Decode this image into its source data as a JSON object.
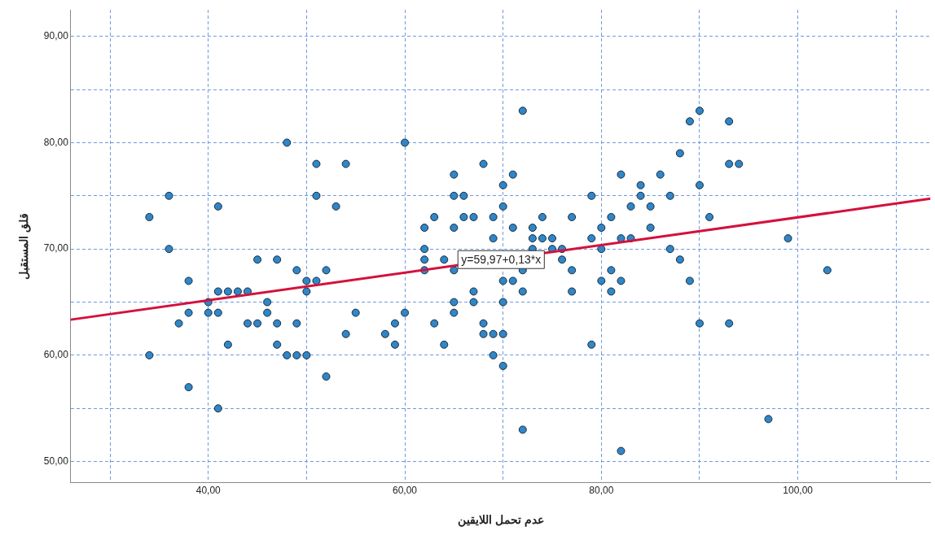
{
  "chart_data": {
    "type": "scatter",
    "xlabel": "عدم تحمل اللايقين",
    "ylabel": "قلق المستقبل",
    "xlim": [
      26,
      113.5
    ],
    "ylim": [
      48,
      92.5
    ],
    "xticks": [
      {
        "value": 30,
        "label": null
      },
      {
        "value": 40,
        "label": "40,00"
      },
      {
        "value": 50,
        "label": null
      },
      {
        "value": 60,
        "label": "60,00"
      },
      {
        "value": 70,
        "label": null
      },
      {
        "value": 80,
        "label": "80,00"
      },
      {
        "value": 90,
        "label": null
      },
      {
        "value": 100,
        "label": "100,00"
      },
      {
        "value": 110,
        "label": null
      }
    ],
    "yticks": [
      {
        "value": 50,
        "label": "50,00"
      },
      {
        "value": 55,
        "label": null
      },
      {
        "value": 60,
        "label": "60,00"
      },
      {
        "value": 65,
        "label": null
      },
      {
        "value": 70,
        "label": "70,00"
      },
      {
        "value": 75,
        "label": null
      },
      {
        "value": 80,
        "label": "80,00"
      },
      {
        "value": 85,
        "label": null
      },
      {
        "value": 90,
        "label": "90,00"
      }
    ],
    "grid": true,
    "legend": false,
    "annotations": [
      {
        "text": "y=59,97+0,13*x",
        "x": 69.8,
        "y": 69
      }
    ],
    "series": [
      {
        "marker": "circle",
        "color": "#2f86c8",
        "x": [
          48,
          51,
          54,
          36,
          41,
          34,
          51,
          53,
          36,
          45,
          47,
          49,
          52,
          38,
          50,
          51,
          50,
          41,
          42,
          43,
          44,
          40,
          46,
          38,
          40,
          41,
          46,
          55,
          37,
          44,
          45,
          47,
          49,
          54,
          42,
          47,
          34,
          48,
          49,
          50,
          52,
          38,
          41,
          60,
          72,
          68,
          65,
          71,
          70,
          65,
          66,
          79,
          70,
          63,
          66,
          67,
          69,
          74,
          77,
          62,
          65,
          71,
          73,
          80,
          69,
          73,
          74,
          75,
          79,
          62,
          73,
          75,
          76,
          80,
          81,
          82,
          84,
          84,
          83,
          85,
          85,
          82,
          83,
          90,
          89,
          93,
          88,
          93,
          94,
          86,
          90,
          87,
          91,
          99,
          87,
          62,
          62,
          64,
          65,
          76,
          72,
          77,
          70,
          71,
          72,
          77,
          81,
          80,
          82,
          81,
          67,
          67,
          65,
          70,
          65,
          60,
          59,
          58,
          59,
          63,
          64,
          68,
          68,
          69,
          70,
          69,
          70,
          79,
          72,
          82,
          88,
          89,
          90,
          93,
          103,
          97
        ],
        "values": [
          80,
          78,
          78,
          75,
          74,
          73,
          75,
          74,
          70,
          69,
          69,
          68,
          68,
          67,
          67,
          67,
          66,
          66,
          66,
          66,
          66,
          65,
          65,
          64,
          64,
          64,
          64,
          64,
          63,
          63,
          63,
          63,
          63,
          62,
          61,
          61,
          60,
          60,
          60,
          60,
          58,
          57,
          55,
          80,
          83,
          78,
          77,
          77,
          76,
          75,
          75,
          75,
          74,
          73,
          73,
          73,
          73,
          73,
          73,
          72,
          72,
          72,
          72,
          72,
          71,
          71,
          71,
          71,
          71,
          70,
          70,
          70,
          70,
          70,
          73,
          77,
          76,
          75,
          74,
          74,
          72,
          71,
          71,
          83,
          82,
          82,
          79,
          78,
          78,
          77,
          76,
          75,
          73,
          71,
          70,
          69,
          68,
          69,
          68,
          69,
          68,
          68,
          67,
          67,
          66,
          66,
          68,
          67,
          67,
          66,
          66,
          65,
          65,
          65,
          64,
          64,
          63,
          62,
          61,
          63,
          61,
          63,
          62,
          62,
          62,
          60,
          59,
          61,
          53,
          51,
          69,
          67,
          63,
          63,
          68,
          54
        ]
      },
      {
        "type": "line",
        "marker": "none",
        "color": "#d4113c",
        "x": [
          26,
          113.5
        ],
        "values": [
          63.35,
          74.73
        ]
      }
    ]
  }
}
